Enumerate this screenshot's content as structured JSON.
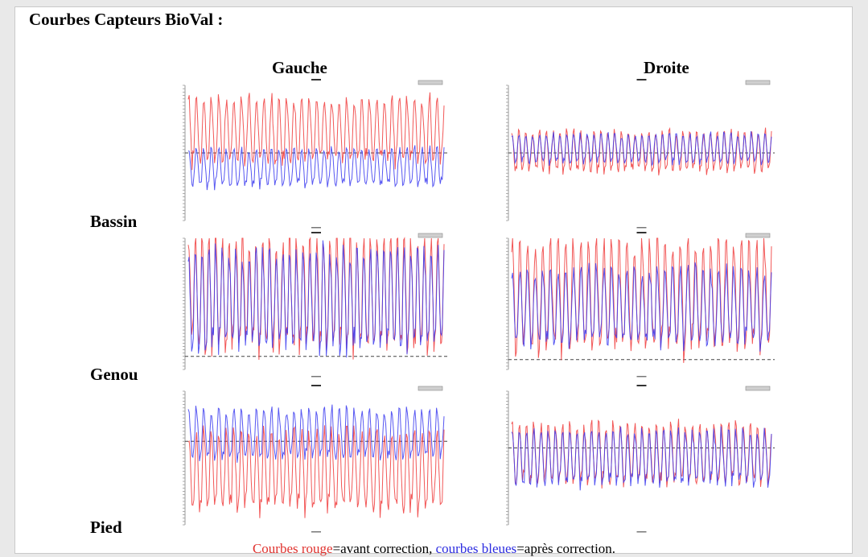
{
  "page_title": "Courbes Capteurs BioVal :",
  "columns": [
    "Gauche",
    "Droite"
  ],
  "rows": [
    "Bassin",
    "Genou",
    "Pied"
  ],
  "caption": {
    "red_text": "Courbes rouge",
    "mid_text": "=avant correction, ",
    "blue_text": "courbes bleues",
    "end_text": "=après correction."
  },
  "colors": {
    "before": "#f03a3a",
    "after": "#3a3af0",
    "axis": "#444444",
    "tick": "#999999"
  },
  "chart_data": [
    {
      "type": "line",
      "panel": "Bassin-Gauche",
      "cycles": 34,
      "ylim": [
        -1,
        1
      ],
      "zero": 0,
      "series": [
        {
          "name": "avant correction",
          "color": "#f03a3a",
          "center": 0.33,
          "amp": 0.45
        },
        {
          "name": "après correction",
          "color": "#3a3af0",
          "center": -0.22,
          "amp": 0.26
        }
      ]
    },
    {
      "type": "line",
      "panel": "Bassin-Droite",
      "cycles": 38,
      "ylim": [
        -1,
        1
      ],
      "zero": 0,
      "series": [
        {
          "name": "avant correction",
          "color": "#f03a3a",
          "center": 0.02,
          "amp": 0.28
        },
        {
          "name": "après correction",
          "color": "#3a3af0",
          "center": 0.06,
          "amp": 0.2
        }
      ]
    },
    {
      "type": "line",
      "panel": "Genou-Gauche",
      "cycles": 38,
      "ylim": [
        -1,
        1
      ],
      "zero": -0.8,
      "series": [
        {
          "name": "avant correction",
          "color": "#f03a3a",
          "center": 0.15,
          "amp": 0.82
        },
        {
          "name": "après correction",
          "color": "#3a3af0",
          "center": 0.05,
          "amp": 0.7
        }
      ]
    },
    {
      "type": "line",
      "panel": "Genou-Droite",
      "cycles": 34,
      "ylim": [
        -1,
        1
      ],
      "zero": -0.85,
      "series": [
        {
          "name": "avant correction",
          "color": "#f03a3a",
          "center": 0.12,
          "amp": 0.78
        },
        {
          "name": "après correction",
          "color": "#3a3af0",
          "center": -0.05,
          "amp": 0.55
        }
      ]
    },
    {
      "type": "line",
      "panel": "Pied-Gauche",
      "cycles": 34,
      "ylim": [
        -1,
        1
      ],
      "zero": 0.25,
      "series": [
        {
          "name": "avant correction",
          "color": "#f03a3a",
          "center": -0.2,
          "amp": 0.55
        },
        {
          "name": "après correction",
          "color": "#3a3af0",
          "center": 0.35,
          "amp": 0.35
        }
      ]
    },
    {
      "type": "line",
      "panel": "Pied-Droite",
      "cycles": 36,
      "ylim": [
        -1,
        1
      ],
      "zero": 0.15,
      "series": [
        {
          "name": "avant correction",
          "color": "#f03a3a",
          "center": 0.05,
          "amp": 0.42
        },
        {
          "name": "après correction",
          "color": "#3a3af0",
          "center": 0.0,
          "amp": 0.38
        }
      ]
    }
  ]
}
